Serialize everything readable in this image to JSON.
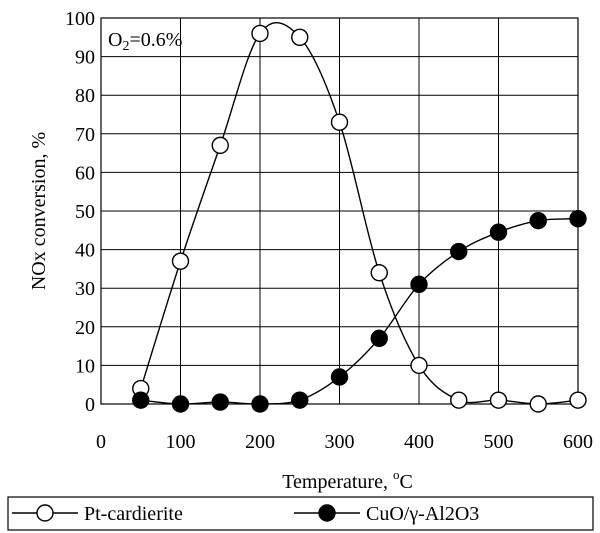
{
  "chart_data": {
    "type": "line",
    "title": "",
    "xlabel": "Temperature, ",
    "xlabel_unit": "C",
    "xlabel_sup": "o",
    "ylabel": "NOx conversion, %",
    "xlim": [
      0,
      600
    ],
    "ylim": [
      0,
      100
    ],
    "x_ticks": [
      0,
      100,
      200,
      300,
      400,
      500,
      600
    ],
    "y_ticks": [
      0,
      10,
      20,
      30,
      40,
      50,
      60,
      70,
      80,
      90,
      100
    ],
    "grid": true,
    "legend_position": "bottom",
    "annotation": {
      "prefix": "O",
      "subscript": "2",
      "suffix": "=0.6%"
    },
    "series": [
      {
        "name": "Pt-cardierite",
        "marker": "open-circle",
        "color": "#000000",
        "x": [
          50,
          100,
          150,
          200,
          250,
          300,
          350,
          400,
          450,
          500,
          550,
          600
        ],
        "y": [
          4,
          37,
          67,
          96,
          95,
          73,
          34,
          10,
          1,
          1,
          0,
          1
        ]
      },
      {
        "name": "CuO/γ-Al2O3",
        "marker": "filled-circle",
        "color": "#000000",
        "x": [
          50,
          100,
          150,
          200,
          250,
          300,
          350,
          400,
          450,
          500,
          550,
          600
        ],
        "y": [
          1,
          0,
          0.5,
          0,
          1,
          7,
          17,
          31,
          39.5,
          44.5,
          47.5,
          48
        ]
      }
    ]
  }
}
